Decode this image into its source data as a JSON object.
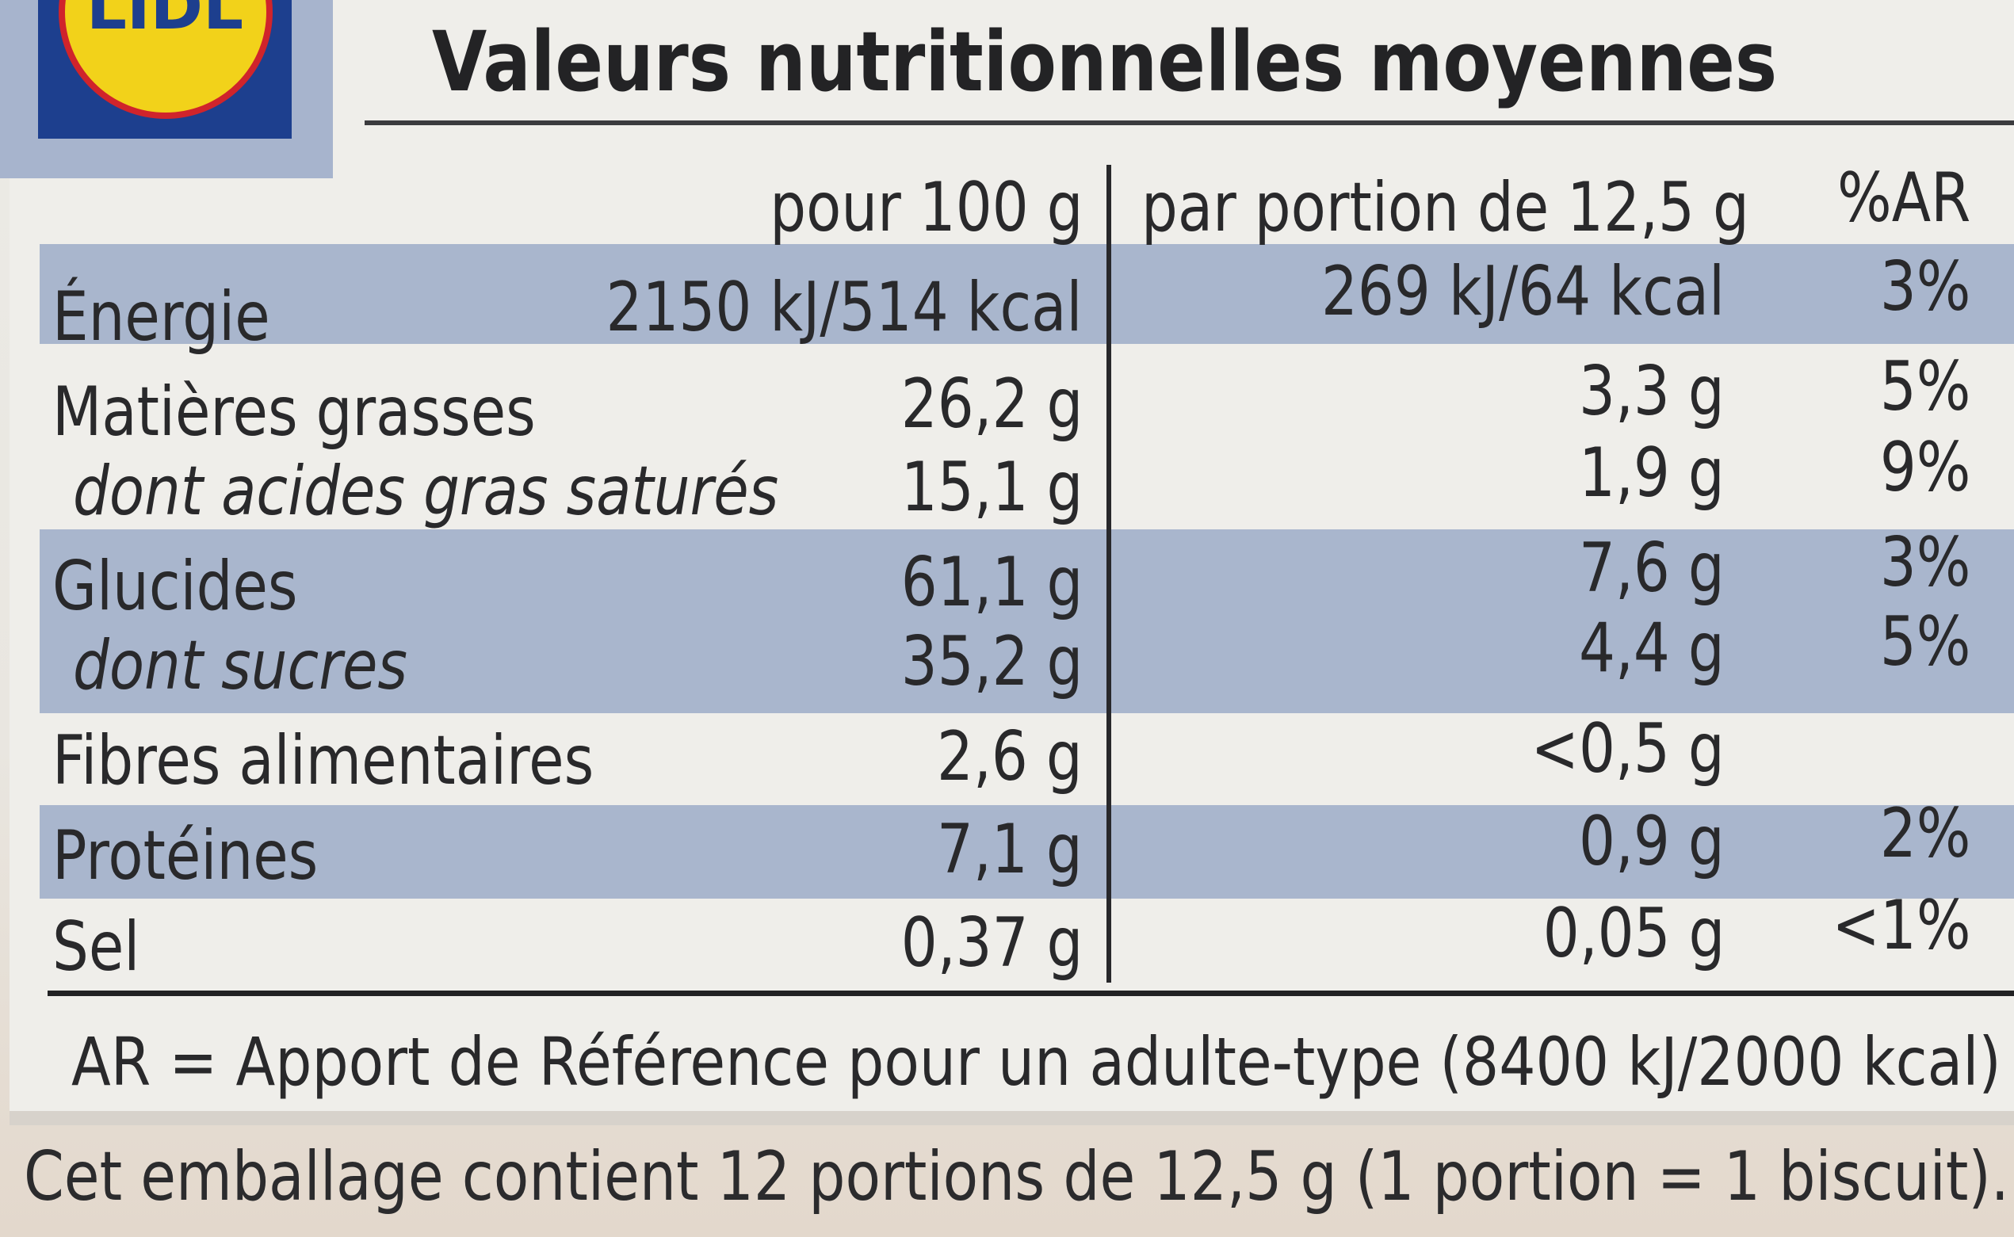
{
  "brand": {
    "logo_text": "LIDL"
  },
  "title": "Valeurs nutritionnelles moyennes",
  "header": {
    "col1": "pour 100 g",
    "col2": "par portion de 12,5 g",
    "col3": "%AR"
  },
  "rows": [
    {
      "label": "Énergie",
      "per100": "2150 kJ/514 kcal",
      "portion": "269 kJ/64 kcal",
      "ar": "3%"
    },
    {
      "label": "Matières grasses",
      "per100": "26,2 g",
      "portion": "3,3 g",
      "ar": "5%"
    },
    {
      "label": "dont acides gras saturés",
      "per100": "15,1 g",
      "portion": "1,9 g",
      "ar": "9%"
    },
    {
      "label": "Glucides",
      "per100": "61,1 g",
      "portion": "7,6 g",
      "ar": "3%"
    },
    {
      "label": "dont sucres",
      "per100": "35,2 g",
      "portion": "4,4 g",
      "ar": "5%"
    },
    {
      "label": "Fibres alimentaires",
      "per100": "2,6 g",
      "portion": "<0,5 g",
      "ar": ""
    },
    {
      "label": "Protéines",
      "per100": "7,1 g",
      "portion": "0,9 g",
      "ar": "2%"
    },
    {
      "label": "Sel",
      "per100": "0,37 g",
      "portion": "0,05 g",
      "ar": "<1%"
    }
  ],
  "footnote": "AR = Apport de Référence pour un adulte-type (8400 kJ/2000 kcal)",
  "portion_note": "Cet emballage contient 12 portions de 12,5 g (1 portion = 1 biscuit).",
  "colors": {
    "band": "#a9b6cd",
    "panel": "#efeeea",
    "text": "#29292b",
    "logo_blue": "#1d3f8e",
    "logo_yellow": "#f2d21a",
    "logo_red": "#d0242b"
  }
}
